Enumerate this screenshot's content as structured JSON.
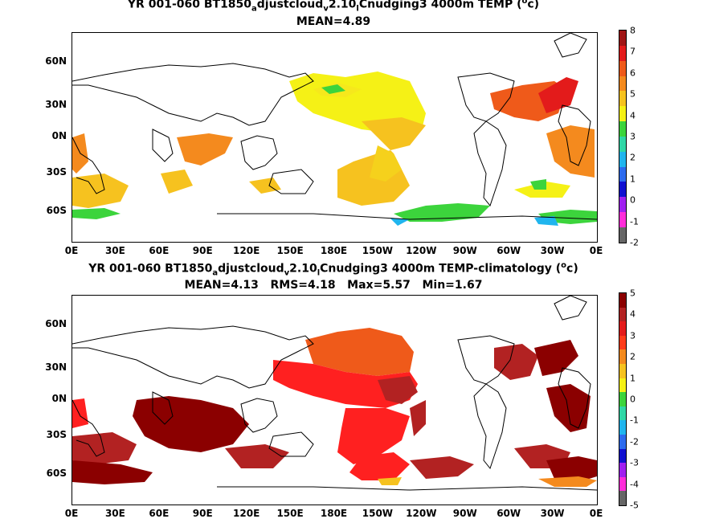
{
  "panel1": {
    "title_a": "YR 001-060 BT1850",
    "title_sub1": "a",
    "title_b": "djustcloud",
    "title_sub2": "v",
    "title_c": "2.10",
    "title_sub3": "l",
    "title_d": "Cnudging3 4000m TEMP (",
    "title_sup": "o",
    "title_e": "c)",
    "subtitle": "MEAN=4.89",
    "colorbar_labels": [
      "8",
      "7",
      "6",
      "5",
      "4",
      "3",
      "2",
      "1",
      "0",
      "-1",
      "-2"
    ],
    "colorbar_colors": [
      "#a01515",
      "#e31b1b",
      "#ef5a1a",
      "#f48a1e",
      "#f6c21f",
      "#f5f116",
      "#3cd43c",
      "#2fd7a6",
      "#20b5ee",
      "#2d6bee",
      "#1010d0",
      "#a020f0",
      "#ff2dd9",
      "#666666"
    ]
  },
  "panel2": {
    "title_a": "YR 001-060 BT1850",
    "title_sub1": "a",
    "title_b": "djustcloud",
    "title_sub2": "v",
    "title_c": "2.10",
    "title_sub3": "l",
    "title_d": "Cnudging3 4000m TEMP-climatology (",
    "title_sup": "o",
    "title_e": "c)",
    "subtitle": "MEAN=4.13   RMS=4.18   Max=5.57   Min=1.67",
    "colorbar_labels": [
      "5",
      "4",
      "3",
      "2",
      "1",
      "0",
      "-1",
      "-2",
      "-3",
      "-4",
      "-5"
    ],
    "colorbar_colors": [
      "#8b0000",
      "#b22222",
      "#e31b1b",
      "#ff3c1a",
      "#f48a1e",
      "#f6c21f",
      "#f5f116",
      "#3cd43c",
      "#2fd7a6",
      "#20b5ee",
      "#2d6bee",
      "#1010d0",
      "#a020f0",
      "#ff2dd9",
      "#666666"
    ]
  },
  "x_ticks": [
    "0E",
    "30E",
    "60E",
    "90E",
    "120E",
    "150E",
    "180E",
    "150W",
    "120W",
    "90W",
    "60W",
    "30W",
    "0E"
  ],
  "y_ticks": [
    "60N",
    "30N",
    "0N",
    "30S",
    "60S"
  ]
}
